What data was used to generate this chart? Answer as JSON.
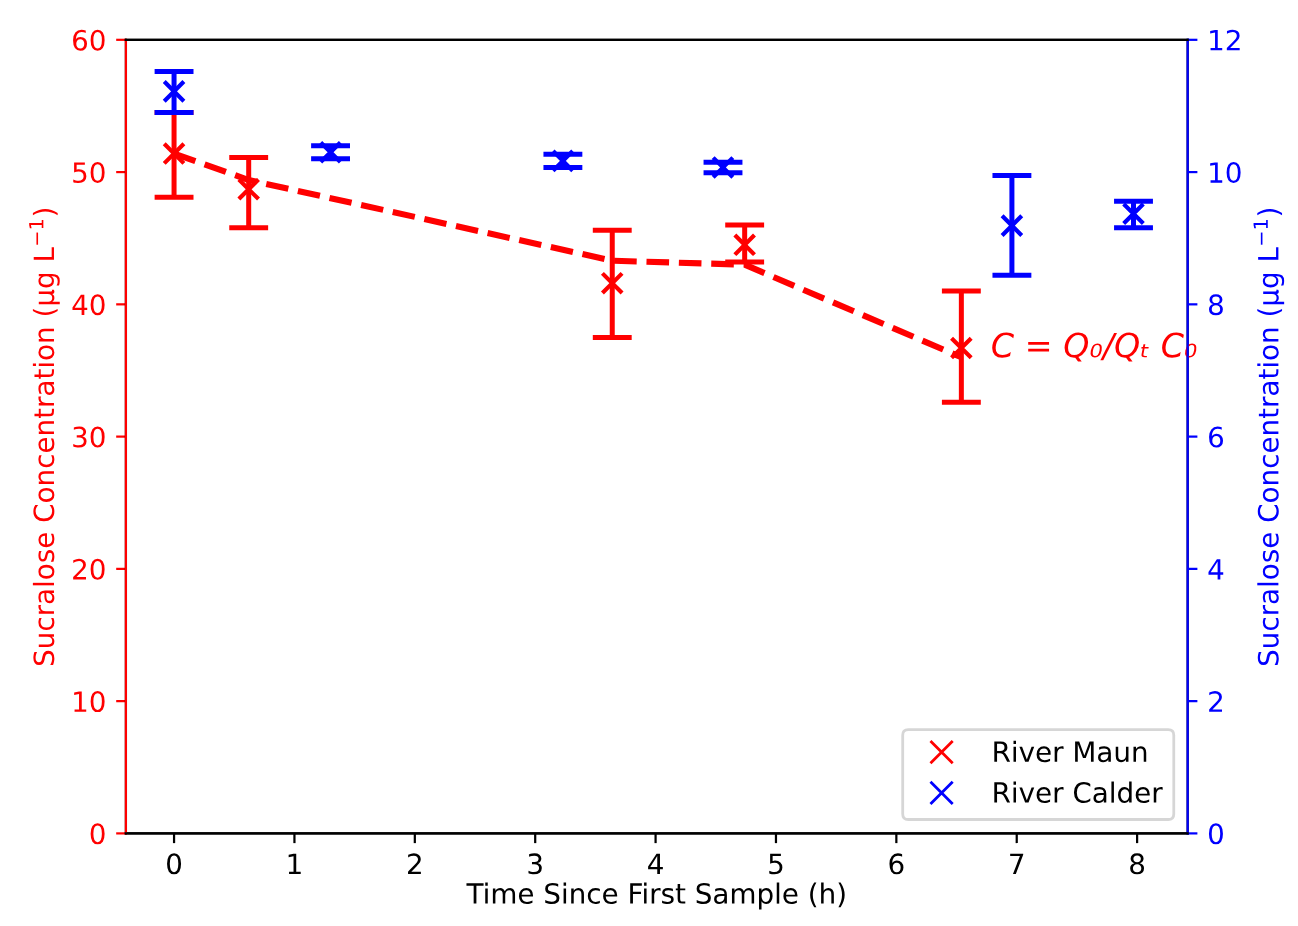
{
  "chart_data": {
    "type": "scatter",
    "xlabel": "Time Since First Sample (h)",
    "ylabel": "Sucralose Concentration (μg L$^{−1}$)",
    "y2label": "Sucralose Concentration (μg L$^{−1}$)",
    "xlim": [
      -0.4,
      8.42
    ],
    "xticks": [
      0,
      1,
      2,
      3,
      4,
      5,
      6,
      7,
      8
    ],
    "ylim": [
      0,
      60
    ],
    "yticks": [
      0,
      10,
      20,
      30,
      40,
      50,
      60
    ],
    "y2lim": [
      0,
      12
    ],
    "y2ticks": [
      0,
      2,
      4,
      6,
      8,
      10,
      12
    ],
    "legend": "bottom right",
    "grid": false,
    "annotations": [
      {
        "text": "C = Q₀/Qₜ C₀",
        "x": 6.6,
        "y": 36.7
      }
    ],
    "series": [
      {
        "name": "River Maun",
        "marker": "cross",
        "color": "#ff0000",
        "x": [
          0,
          0.62,
          3.64,
          4.74,
          6.54
        ],
        "values": [
          51.4,
          48.7,
          41.6,
          44.5,
          36.7
        ],
        "errors": [
          [
            48.1,
            54.5
          ],
          [
            45.8,
            51.1
          ],
          [
            37.5,
            45.6
          ],
          [
            43.2,
            46.0
          ],
          [
            32.6,
            41.0
          ]
        ]
      },
      {
        "name": "River Calder",
        "marker": "cross",
        "color": "#0000ff",
        "axis": "y2",
        "x": [
          0,
          1.3,
          3.23,
          4.56,
          6.96,
          7.97
        ],
        "values": [
          11.22,
          10.3,
          10.17,
          10.07,
          9.19,
          9.37
        ],
        "errors": [
          [
            10.9,
            11.52
          ],
          [
            10.2,
            10.4
          ],
          [
            10.07,
            10.27
          ],
          [
            9.99,
            10.15
          ],
          [
            8.44,
            9.95
          ],
          [
            9.16,
            9.56
          ]
        ]
      },
      {
        "type": "line",
        "line_style": "dashed",
        "color": "#ff0000",
        "x": [
          0,
          0.62,
          3.64,
          4.74,
          6.54
        ],
        "values": [
          51.4,
          49.4,
          43.3,
          43.0,
          36.0
        ]
      }
    ]
  }
}
